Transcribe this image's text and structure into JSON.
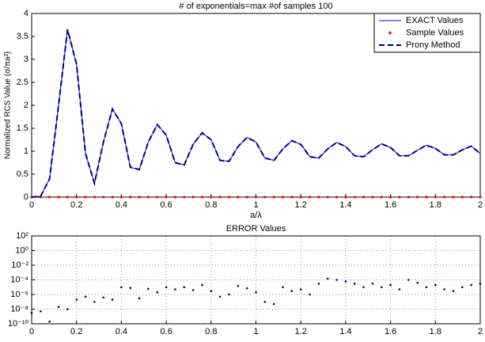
{
  "chart_data": [
    {
      "type": "line",
      "title": "# of exponentials=max #of samples 100",
      "x_label": "a/λ",
      "y_label": "Normalized RCS Value (σ/πa²)",
      "x": [
        0,
        0.04,
        0.08,
        0.12,
        0.16,
        0.2,
        0.24,
        0.28,
        0.32,
        0.36,
        0.4,
        0.44,
        0.48,
        0.52,
        0.56,
        0.6,
        0.64,
        0.68,
        0.72,
        0.76,
        0.8,
        0.84,
        0.88,
        0.92,
        0.96,
        1,
        1.04,
        1.08,
        1.12,
        1.16,
        1.2,
        1.24,
        1.28,
        1.32,
        1.36,
        1.4,
        1.44,
        1.48,
        1.52,
        1.56,
        1.6,
        1.64,
        1.68,
        1.72,
        1.76,
        1.8,
        1.84,
        1.88,
        1.92,
        1.96,
        2
      ],
      "series": [
        {
          "name": "EXACT Values",
          "color": "#0000ff",
          "line_style": "solid",
          "values": [
            0,
            0.02,
            0.4,
            2.0,
            3.65,
            2.9,
            0.95,
            0.3,
            1.2,
            1.92,
            1.6,
            0.65,
            0.6,
            1.2,
            1.58,
            1.35,
            0.75,
            0.7,
            1.15,
            1.4,
            1.25,
            0.8,
            0.78,
            1.1,
            1.3,
            1.2,
            0.85,
            0.8,
            1.05,
            1.23,
            1.15,
            0.88,
            0.85,
            1.05,
            1.19,
            1.1,
            0.9,
            0.88,
            1.03,
            1.16,
            1.08,
            0.9,
            0.9,
            1.02,
            1.13,
            1.06,
            0.92,
            0.92,
            1.03,
            1.11,
            0.95
          ]
        },
        {
          "name": "Sample Values",
          "color": "#ff0000",
          "line_style": "none",
          "values": [
            0,
            0,
            0,
            0,
            0,
            0,
            0,
            0,
            0,
            0,
            0,
            0,
            0,
            0,
            0,
            0,
            0,
            0,
            0,
            0,
            0,
            0,
            0,
            0,
            0,
            0,
            0,
            0,
            0,
            0,
            0,
            0,
            0,
            0,
            0,
            0,
            0,
            0,
            0,
            0,
            0,
            0,
            0,
            0,
            0,
            0,
            0,
            0,
            0,
            0,
            0
          ]
        },
        {
          "name": "Prony Method",
          "color": "#000080",
          "line_style": "dashed",
          "values": [
            0,
            0.02,
            0.4,
            2.0,
            3.65,
            2.9,
            0.95,
            0.3,
            1.2,
            1.92,
            1.6,
            0.65,
            0.6,
            1.2,
            1.58,
            1.35,
            0.75,
            0.7,
            1.15,
            1.4,
            1.25,
            0.8,
            0.78,
            1.1,
            1.3,
            1.2,
            0.85,
            0.8,
            1.05,
            1.23,
            1.15,
            0.88,
            0.85,
            1.05,
            1.19,
            1.1,
            0.9,
            0.88,
            1.03,
            1.16,
            1.08,
            0.9,
            0.9,
            1.02,
            1.13,
            1.06,
            0.92,
            0.92,
            1.03,
            1.11,
            0.95
          ]
        }
      ],
      "xlim": [
        0,
        2
      ],
      "xticks": [
        0,
        0.2,
        0.4,
        0.6,
        0.8,
        1,
        1.2,
        1.4,
        1.6,
        1.8,
        2
      ],
      "ylim": [
        0,
        4
      ],
      "yticks": [
        0,
        0.5,
        1,
        1.5,
        2,
        2.5,
        3,
        3.5,
        4
      ],
      "grid": false,
      "legend": "top-right"
    },
    {
      "type": "scatter",
      "title": "ERROR Values",
      "x": [
        0,
        0.04,
        0.08,
        0.12,
        0.16,
        0.2,
        0.24,
        0.28,
        0.32,
        0.36,
        0.4,
        0.44,
        0.48,
        0.52,
        0.56,
        0.6,
        0.64,
        0.68,
        0.72,
        0.76,
        0.8,
        0.84,
        0.88,
        0.92,
        0.96,
        1,
        1.04,
        1.08,
        1.12,
        1.16,
        1.2,
        1.24,
        1.28,
        1.32,
        1.36,
        1.4,
        1.44,
        1.48,
        1.52,
        1.56,
        1.6,
        1.64,
        1.68,
        1.72,
        1.76,
        1.8,
        1.84,
        1.88,
        1.92,
        1.96,
        2
      ],
      "values": [
        3e-09,
        5e-09,
        2e-10,
        2e-08,
        1e-08,
        2e-07,
        5e-07,
        1e-07,
        4e-07,
        2e-07,
        1e-05,
        8e-06,
        3e-07,
        6e-06,
        2e-06,
        1e-05,
        5e-06,
        1e-05,
        4e-06,
        2e-05,
        3e-06,
        5e-07,
        1e-06,
        1.5e-05,
        7e-06,
        2e-06,
        1e-07,
        5e-08,
        1e-05,
        3e-06,
        5e-06,
        1e-06,
        3e-05,
        0.00015,
        0.0001,
        6e-05,
        3e-05,
        1e-05,
        3e-05,
        1e-05,
        2e-05,
        5e-06,
        0.0001,
        4e-05,
        1e-05,
        2e-05,
        5e-06,
        3e-06,
        1e-05,
        2e-05,
        3e-05
      ],
      "color": "#00008b",
      "xlim": [
        0,
        2
      ],
      "xticks": [
        0,
        0.2,
        0.4,
        0.6,
        0.8,
        1,
        1.2,
        1.4,
        1.6,
        1.8,
        2
      ],
      "ylim": [
        1e-10,
        100
      ],
      "log_y": true,
      "yticks": [
        {
          "value": 1e-10,
          "label": "10⁻¹⁰"
        },
        {
          "value": 1e-08,
          "label": "10⁻⁸"
        },
        {
          "value": 1e-06,
          "label": "10⁻⁶"
        },
        {
          "value": 0.0001,
          "label": "10⁻⁴"
        },
        {
          "value": 0.01,
          "label": "10⁻²"
        },
        {
          "value": 1,
          "label": "10⁰"
        },
        {
          "value": 100,
          "label": "10²"
        }
      ],
      "grid": true
    }
  ]
}
